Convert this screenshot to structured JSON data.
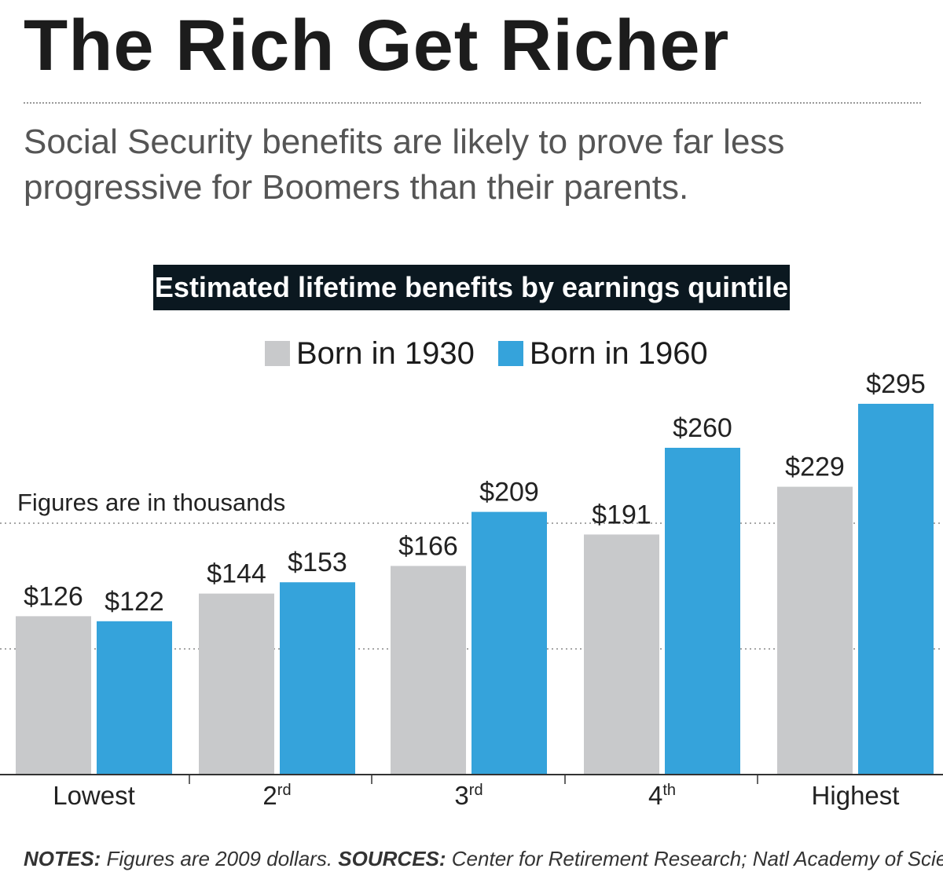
{
  "header": {
    "title": "The Rich Get Richer",
    "subtitle": "Social Security benefits are likely to prove far less progressive for Boomers than their parents."
  },
  "chart_data": {
    "type": "bar",
    "title": "Estimated lifetime benefits by earnings quintile",
    "annotation": "Figures are in thousands",
    "categories": [
      {
        "base": "Lowest",
        "sup": ""
      },
      {
        "base": "2",
        "sup": "rd"
      },
      {
        "base": "3",
        "sup": "rd"
      },
      {
        "base": "4",
        "sup": "th"
      },
      {
        "base": "Highest",
        "sup": ""
      }
    ],
    "series": [
      {
        "name": "Born in 1930",
        "color": "#c8c9cb",
        "values": [
          126,
          144,
          166,
          191,
          229
        ],
        "labels": [
          "$126",
          "$144",
          "$166",
          "$191",
          "$229"
        ]
      },
      {
        "name": "Born in 1960",
        "color": "#35a3db",
        "values": [
          122,
          153,
          209,
          260,
          295
        ],
        "labels": [
          "$122",
          "$153",
          "$209",
          "$260",
          "$295"
        ]
      }
    ],
    "ylim": [
      0,
      300
    ],
    "gridlines": [
      100,
      200
    ],
    "grid": true,
    "legend_position": "top-center"
  },
  "footer": {
    "notes_label": "NOTES:",
    "notes_text": " Figures are 2009 dollars.",
    "sources_label": "SOURCES:",
    "sources_text": " Center for Retirement Research; Natl Academy of Sciences"
  }
}
